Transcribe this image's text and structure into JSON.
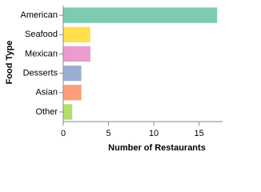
{
  "chart_data": {
    "type": "bar",
    "orientation": "horizontal",
    "x_label": "Number of Restaurants",
    "y_label": "Food Type",
    "categories": [
      "American",
      "Seafood",
      "Mexican",
      "Desserts",
      "Asian",
      "Other"
    ],
    "values": [
      17,
      3,
      3,
      2,
      2,
      1
    ],
    "colors": [
      "#66c2a5",
      "#ffd92f",
      "#e78ac3",
      "#8da0cb",
      "#fc8d62",
      "#a6d854"
    ],
    "xlim": [
      0,
      17.6
    ],
    "xticks": [
      0,
      5,
      10,
      15
    ],
    "grid": false
  }
}
